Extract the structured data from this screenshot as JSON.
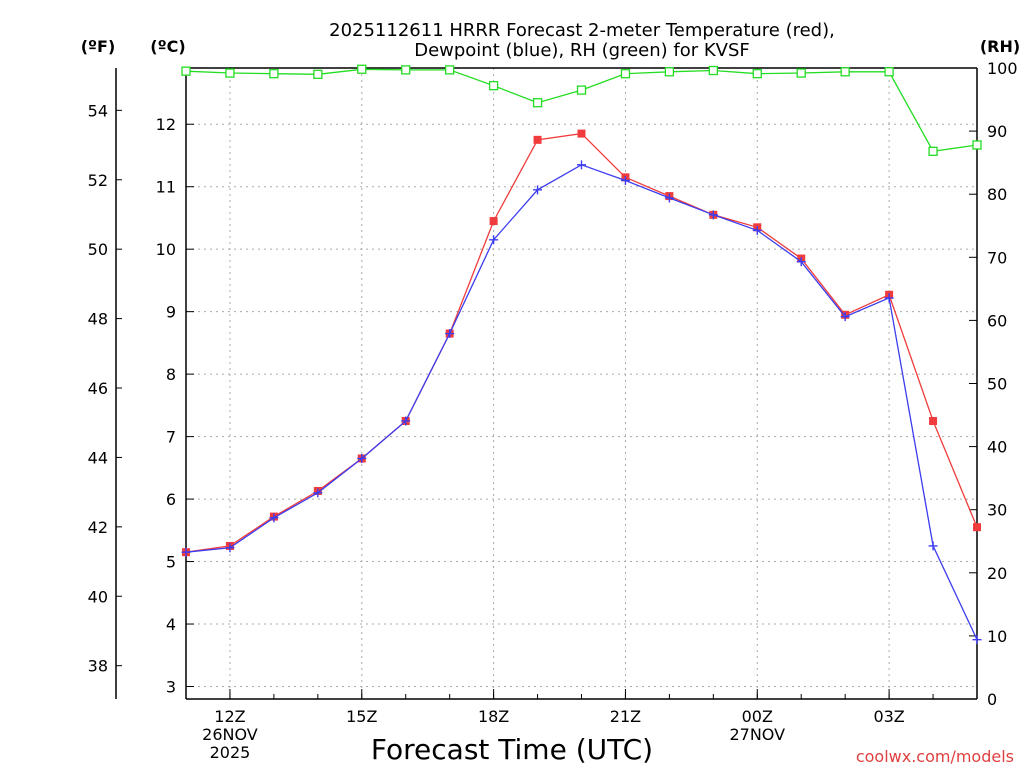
{
  "title": {
    "line1": "2025112611 HRRR Forecast 2-meter Temperature (red),",
    "line2": "Dewpoint (blue), RH (green) for KVSF"
  },
  "axis_units": {
    "f": "(ºF)",
    "c": "(ºC)",
    "rh": "(RH)"
  },
  "xlabel": "Forecast Time (UTC)",
  "credit": "coolwx.com/models",
  "colors": {
    "temperature": "#f03c3c",
    "dewpoint": "#3c3cf0",
    "rh": "#22dd22",
    "grid": "#aaaaaa",
    "axis": "#000000",
    "credit": "#e04040"
  },
  "chart_data": {
    "type": "line",
    "title": "2025112611 HRRR Forecast 2-meter Temperature (red), Dewpoint (blue), RH (green) for KVSF",
    "xlabel": "Forecast Time (UTC)",
    "x_hours": [
      11,
      12,
      13,
      14,
      15,
      16,
      17,
      18,
      19,
      20,
      21,
      22,
      23,
      24,
      25,
      26,
      27,
      28,
      29
    ],
    "xlim": [
      11,
      29
    ],
    "x_ticks": [
      {
        "hour": 12,
        "lines": [
          "12Z",
          "26NOV",
          "2025"
        ]
      },
      {
        "hour": 15,
        "lines": [
          "15Z"
        ]
      },
      {
        "hour": 18,
        "lines": [
          "18Z"
        ]
      },
      {
        "hour": 21,
        "lines": [
          "21Z"
        ]
      },
      {
        "hour": 24,
        "lines": [
          "00Z",
          "27NOV"
        ]
      },
      {
        "hour": 27,
        "lines": [
          "03Z"
        ]
      }
    ],
    "c_axis": {
      "label": "(ºC)",
      "ylim": [
        2.8,
        12.9
      ],
      "ticks": [
        3,
        4,
        5,
        6,
        7,
        8,
        9,
        10,
        11,
        12
      ]
    },
    "f_axis": {
      "label": "(ºF)",
      "ylim": [
        37.04,
        55.22
      ],
      "ticks": [
        38,
        40,
        42,
        44,
        46,
        48,
        50,
        52,
        54
      ]
    },
    "rh_axis": {
      "label": "(RH)",
      "ylim": [
        0,
        100
      ],
      "ticks": [
        0,
        10,
        20,
        30,
        40,
        50,
        60,
        70,
        80,
        90,
        100
      ]
    },
    "series": [
      {
        "name": "Temperature",
        "units": "°C",
        "color": "#f03c3c",
        "marker": "square",
        "values": [
          5.15,
          5.25,
          5.72,
          6.13,
          6.65,
          7.25,
          8.65,
          10.45,
          11.75,
          11.85,
          11.15,
          10.85,
          10.55,
          10.35,
          9.85,
          8.95,
          9.27,
          7.25,
          5.55
        ]
      },
      {
        "name": "Dewpoint",
        "units": "°C",
        "color": "#3c3cf0",
        "marker": "plus",
        "values": [
          5.15,
          5.22,
          5.7,
          6.1,
          6.65,
          7.25,
          8.65,
          10.15,
          10.95,
          11.35,
          11.1,
          10.82,
          10.55,
          10.3,
          9.8,
          8.92,
          9.22,
          5.25,
          3.75
        ]
      },
      {
        "name": "RH",
        "units": "%",
        "color": "#22dd22",
        "marker": "open-square",
        "values": [
          99.5,
          99.2,
          99.1,
          99.0,
          99.8,
          99.7,
          99.7,
          97.2,
          94.5,
          96.5,
          99.1,
          99.4,
          99.6,
          99.1,
          99.2,
          99.4,
          99.4,
          86.8,
          87.8
        ]
      }
    ]
  }
}
